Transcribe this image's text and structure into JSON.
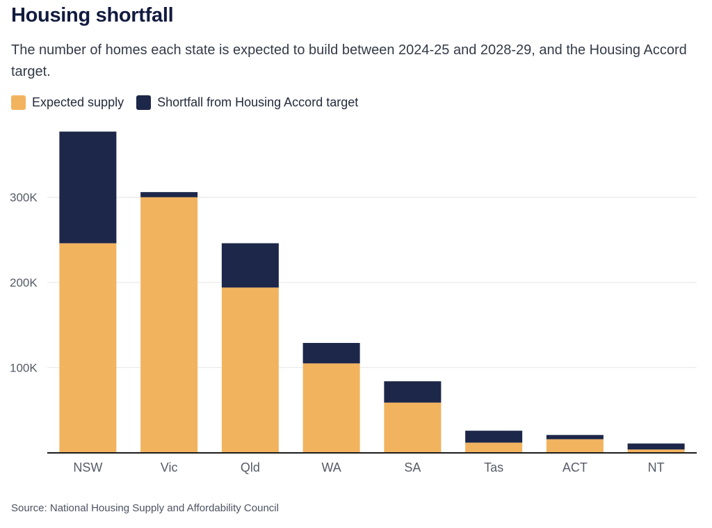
{
  "title": "Housing shortfall",
  "subtitle": "The number of homes each state is expected to build between 2024-25 and 2028-29, and the Housing Accord target.",
  "source": "Source: National Housing Supply and Affordability Council",
  "colors": {
    "supply": "#f2b35f",
    "shortfall": "#1c2749",
    "grid": "#e6e6e6",
    "axis": "#1b1b1b",
    "tick_text": "#555b66"
  },
  "chart_data": {
    "type": "bar",
    "stacked": true,
    "categories": [
      "NSW",
      "Vic",
      "Qld",
      "WA",
      "SA",
      "Tas",
      "ACT",
      "NT"
    ],
    "series": [
      {
        "name": "Expected supply",
        "values": [
          246000,
          300000,
          194000,
          105000,
          59000,
          12000,
          16000,
          4000
        ]
      },
      {
        "name": "Shortfall from Housing Accord target",
        "values": [
          131000,
          6000,
          52000,
          24000,
          25000,
          14000,
          5000,
          7000
        ]
      }
    ],
    "yticks": [
      100000,
      200000,
      300000
    ],
    "ytick_labels": [
      "100K",
      "200K",
      "300K"
    ],
    "ylim": [
      0,
      380000
    ],
    "grid": true,
    "legend_position": "top-left"
  }
}
